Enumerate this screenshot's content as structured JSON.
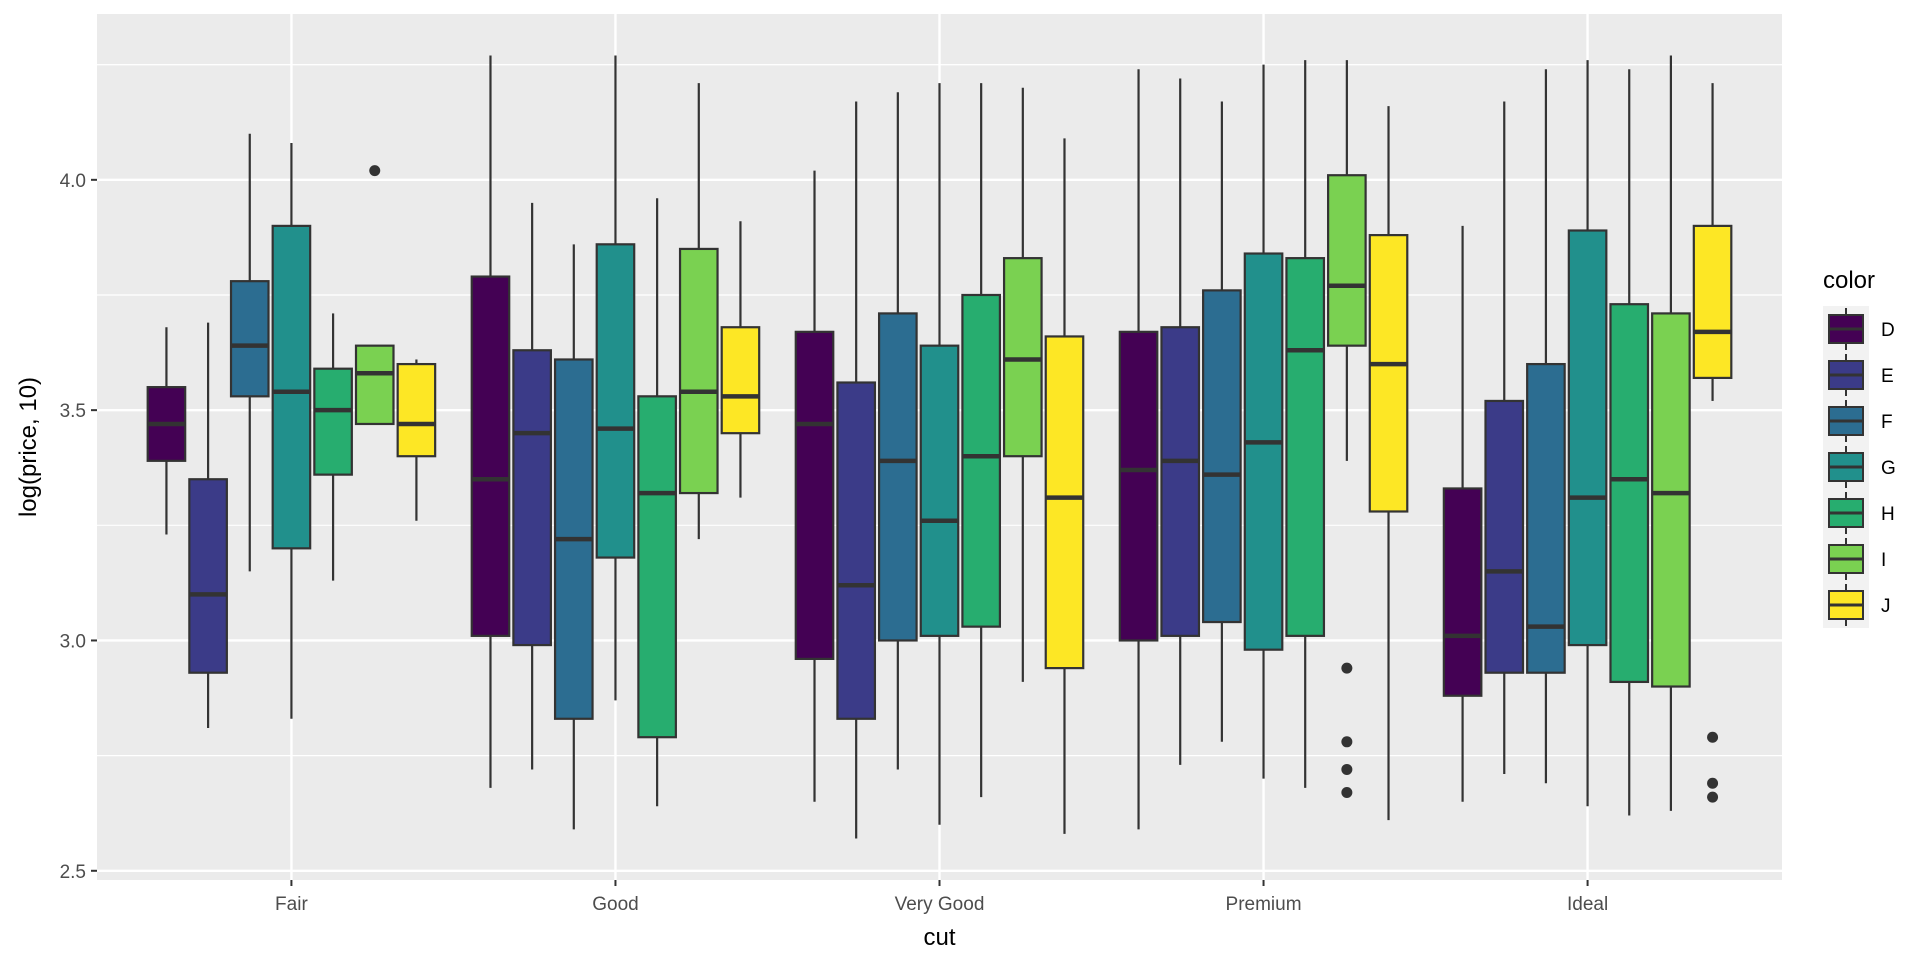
{
  "chart_data": {
    "type": "boxplot",
    "xlabel": "cut",
    "ylabel": "log(price, 10)",
    "categories": [
      "Fair",
      "Good",
      "Very Good",
      "Premium",
      "Ideal"
    ],
    "ylim": [
      2.48,
      4.36
    ],
    "yticks": [
      2.5,
      3.0,
      3.5,
      4.0
    ],
    "ytick_labels": [
      "2.5",
      "3.0",
      "3.5",
      "4.0"
    ],
    "grid": true,
    "legend": {
      "title": "color",
      "position": "right",
      "items": [
        "D",
        "E",
        "F",
        "G",
        "H",
        "I",
        "J"
      ]
    },
    "groups": [
      {
        "name": "D",
        "color": "#440154",
        "boxes": [
          {
            "cat": "Fair",
            "whislo": 3.23,
            "q1": 3.39,
            "med": 3.47,
            "q3": 3.55,
            "whishi": 3.68,
            "fliers": []
          },
          {
            "cat": "Good",
            "whislo": 2.68,
            "q1": 3.01,
            "med": 3.35,
            "q3": 3.79,
            "whishi": 4.27,
            "fliers": []
          },
          {
            "cat": "Very Good",
            "whislo": 2.65,
            "q1": 2.96,
            "med": 3.47,
            "q3": 3.67,
            "whishi": 4.02,
            "fliers": []
          },
          {
            "cat": "Premium",
            "whislo": 2.59,
            "q1": 3.0,
            "med": 3.37,
            "q3": 3.67,
            "whishi": 4.24,
            "fliers": []
          },
          {
            "cat": "Ideal",
            "whislo": 2.65,
            "q1": 2.88,
            "med": 3.01,
            "q3": 3.33,
            "whishi": 3.9,
            "fliers": []
          }
        ]
      },
      {
        "name": "E",
        "color": "#3B3B88",
        "boxes": [
          {
            "cat": "Fair",
            "whislo": 2.81,
            "q1": 2.93,
            "med": 3.1,
            "q3": 3.35,
            "whishi": 3.69,
            "fliers": []
          },
          {
            "cat": "Good",
            "whislo": 2.72,
            "q1": 2.99,
            "med": 3.45,
            "q3": 3.63,
            "whishi": 3.95,
            "fliers": []
          },
          {
            "cat": "Very Good",
            "whislo": 2.57,
            "q1": 2.83,
            "med": 3.12,
            "q3": 3.56,
            "whishi": 4.17,
            "fliers": []
          },
          {
            "cat": "Premium",
            "whislo": 2.73,
            "q1": 3.01,
            "med": 3.39,
            "q3": 3.68,
            "whishi": 4.22,
            "fliers": []
          },
          {
            "cat": "Ideal",
            "whislo": 2.71,
            "q1": 2.93,
            "med": 3.15,
            "q3": 3.52,
            "whishi": 4.17,
            "fliers": []
          }
        ]
      },
      {
        "name": "F",
        "color": "#2C6D91",
        "boxes": [
          {
            "cat": "Fair",
            "whislo": 3.15,
            "q1": 3.53,
            "med": 3.64,
            "q3": 3.78,
            "whishi": 4.1,
            "fliers": []
          },
          {
            "cat": "Good",
            "whislo": 2.59,
            "q1": 2.83,
            "med": 3.22,
            "q3": 3.61,
            "whishi": 3.86,
            "fliers": []
          },
          {
            "cat": "Very Good",
            "whislo": 2.72,
            "q1": 3.0,
            "med": 3.39,
            "q3": 3.71,
            "whishi": 4.19,
            "fliers": []
          },
          {
            "cat": "Premium",
            "whislo": 2.78,
            "q1": 3.04,
            "med": 3.36,
            "q3": 3.76,
            "whishi": 4.17,
            "fliers": []
          },
          {
            "cat": "Ideal",
            "whislo": 2.69,
            "q1": 2.93,
            "med": 3.03,
            "q3": 3.6,
            "whishi": 4.24,
            "fliers": []
          }
        ]
      },
      {
        "name": "G",
        "color": "#21908C",
        "boxes": [
          {
            "cat": "Fair",
            "whislo": 2.83,
            "q1": 3.2,
            "med": 3.54,
            "q3": 3.9,
            "whishi": 4.08,
            "fliers": []
          },
          {
            "cat": "Good",
            "whislo": 2.87,
            "q1": 3.18,
            "med": 3.46,
            "q3": 3.86,
            "whishi": 4.27,
            "fliers": []
          },
          {
            "cat": "Very Good",
            "whislo": 2.6,
            "q1": 3.01,
            "med": 3.26,
            "q3": 3.64,
            "whishi": 4.21,
            "fliers": []
          },
          {
            "cat": "Premium",
            "whislo": 2.7,
            "q1": 2.98,
            "med": 3.43,
            "q3": 3.84,
            "whishi": 4.25,
            "fliers": []
          },
          {
            "cat": "Ideal",
            "whislo": 2.64,
            "q1": 2.99,
            "med": 3.31,
            "q3": 3.89,
            "whishi": 4.26,
            "fliers": []
          }
        ]
      },
      {
        "name": "H",
        "color": "#27AD6F",
        "boxes": [
          {
            "cat": "Fair",
            "whislo": 3.13,
            "q1": 3.36,
            "med": 3.5,
            "q3": 3.59,
            "whishi": 3.71,
            "fliers": []
          },
          {
            "cat": "Good",
            "whislo": 2.64,
            "q1": 2.79,
            "med": 3.32,
            "q3": 3.53,
            "whishi": 3.96,
            "fliers": []
          },
          {
            "cat": "Very Good",
            "whislo": 2.66,
            "q1": 3.03,
            "med": 3.4,
            "q3": 3.75,
            "whishi": 4.21,
            "fliers": []
          },
          {
            "cat": "Premium",
            "whislo": 2.68,
            "q1": 3.01,
            "med": 3.63,
            "q3": 3.83,
            "whishi": 4.26,
            "fliers": []
          },
          {
            "cat": "Ideal",
            "whislo": 2.62,
            "q1": 2.91,
            "med": 3.35,
            "q3": 3.73,
            "whishi": 4.24,
            "fliers": []
          }
        ]
      },
      {
        "name": "I",
        "color": "#7AD151",
        "boxes": [
          {
            "cat": "Fair",
            "whislo": 3.47,
            "q1": 3.47,
            "med": 3.58,
            "q3": 3.64,
            "whishi": 3.64,
            "fliers": [
              4.02
            ]
          },
          {
            "cat": "Good",
            "whislo": 3.22,
            "q1": 3.32,
            "med": 3.54,
            "q3": 3.85,
            "whishi": 4.21,
            "fliers": []
          },
          {
            "cat": "Very Good",
            "whislo": 2.91,
            "q1": 3.4,
            "med": 3.61,
            "q3": 3.83,
            "whishi": 4.2,
            "fliers": []
          },
          {
            "cat": "Premium",
            "whislo": 3.39,
            "q1": 3.64,
            "med": 3.77,
            "q3": 4.01,
            "whishi": 4.26,
            "fliers": [
              2.94,
              2.78,
              2.72,
              2.67
            ]
          },
          {
            "cat": "Ideal",
            "whislo": 2.63,
            "q1": 2.9,
            "med": 3.32,
            "q3": 3.71,
            "whishi": 4.27,
            "fliers": []
          }
        ]
      },
      {
        "name": "J",
        "color": "#FDE725",
        "boxes": [
          {
            "cat": "Fair",
            "whislo": 3.26,
            "q1": 3.4,
            "med": 3.47,
            "q3": 3.6,
            "whishi": 3.61,
            "fliers": []
          },
          {
            "cat": "Good",
            "whislo": 3.31,
            "q1": 3.45,
            "med": 3.53,
            "q3": 3.68,
            "whishi": 3.91,
            "fliers": []
          },
          {
            "cat": "Very Good",
            "whislo": 2.58,
            "q1": 2.94,
            "med": 3.31,
            "q3": 3.66,
            "whishi": 4.09,
            "fliers": []
          },
          {
            "cat": "Premium",
            "whislo": 2.61,
            "q1": 3.28,
            "med": 3.6,
            "q3": 3.88,
            "whishi": 4.16,
            "fliers": []
          },
          {
            "cat": "Ideal",
            "whislo": 3.52,
            "q1": 3.57,
            "med": 3.67,
            "q3": 3.9,
            "whishi": 4.21,
            "fliers": [
              2.79,
              2.69,
              2.66
            ]
          }
        ]
      }
    ]
  }
}
